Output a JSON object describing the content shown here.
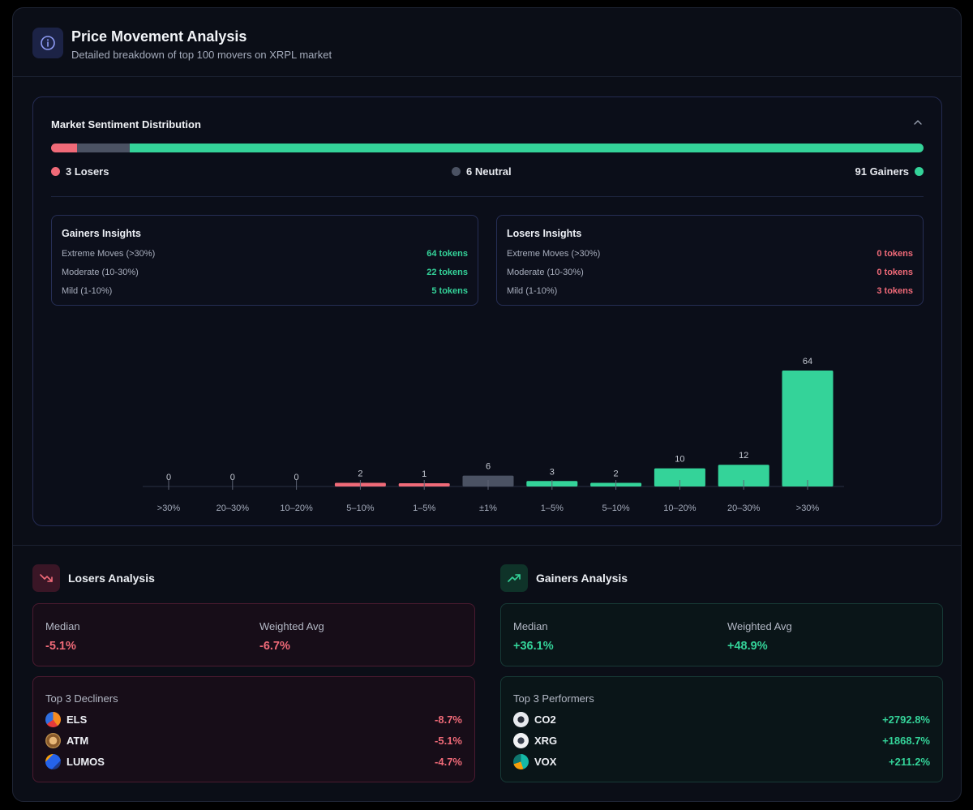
{
  "header": {
    "title": "Price Movement Analysis",
    "subtitle": "Detailed breakdown of top 100 movers on XRPL market",
    "icon": "info-icon"
  },
  "sentiment": {
    "title": "Market Sentiment Distribution",
    "losers_label": "3 Losers",
    "neutral_label": "6 Neutral",
    "gainers_label": "91 Gainers",
    "losers_count": 3,
    "neutral_count": 6,
    "gainers_count": 91
  },
  "gainers_insights": {
    "title": "Gainers Insights",
    "rows": [
      {
        "label": "Extreme Moves (>30%)",
        "value": "64 tokens"
      },
      {
        "label": "Moderate (10-30%)",
        "value": "22 tokens"
      },
      {
        "label": "Mild (1-10%)",
        "value": "5 tokens"
      }
    ]
  },
  "losers_insights": {
    "title": "Losers Insights",
    "rows": [
      {
        "label": "Extreme Moves (>30%)",
        "value": "0 tokens"
      },
      {
        "label": "Moderate (10-30%)",
        "value": "0 tokens"
      },
      {
        "label": "Mild (1-10%)",
        "value": "3 tokens"
      }
    ]
  },
  "chart_data": {
    "type": "bar",
    "categories": [
      ">30%",
      "20–30%",
      "10–20%",
      "5–10%",
      "1–5%",
      "±1%",
      "1–5%",
      "5–10%",
      "10–20%",
      "20–30%",
      ">30%"
    ],
    "values": [
      0,
      0,
      0,
      2,
      1,
      6,
      3,
      2,
      10,
      12,
      64
    ],
    "groups": [
      "loser",
      "loser",
      "loser",
      "loser",
      "loser",
      "neutral",
      "gainer",
      "gainer",
      "gainer",
      "gainer",
      "gainer"
    ],
    "title": "",
    "xlabel": "",
    "ylabel": "",
    "ylim": [
      0,
      64
    ]
  },
  "losers_analysis": {
    "title": "Losers Analysis",
    "icon": "trending-down-icon",
    "median_label": "Median",
    "median_value": "-5.1%",
    "wavg_label": "Weighted Avg",
    "wavg_value": "-6.7%",
    "top_label": "Top 3 Decliners",
    "top": [
      {
        "name": "ELS",
        "value": "-8.7%",
        "icon": "els-token-icon"
      },
      {
        "name": "ATM",
        "value": "-5.1%",
        "icon": "atm-token-icon"
      },
      {
        "name": "LUMOS",
        "value": "-4.7%",
        "icon": "lumos-token-icon"
      }
    ]
  },
  "gainers_analysis": {
    "title": "Gainers Analysis",
    "icon": "trending-up-icon",
    "median_label": "Median",
    "median_value": "+36.1%",
    "wavg_label": "Weighted Avg",
    "wavg_value": "+48.9%",
    "top_label": "Top 3 Performers",
    "top": [
      {
        "name": "CO2",
        "value": "+2792.8%",
        "icon": "co2-token-icon"
      },
      {
        "name": "XRG",
        "value": "+1868.7%",
        "icon": "xrg-token-icon"
      },
      {
        "name": "VOX",
        "value": "+211.2%",
        "icon": "vox-token-icon"
      }
    ]
  },
  "colors": {
    "loser": "#f06a78",
    "neutral": "#4b5263",
    "gainer": "#34d399"
  }
}
